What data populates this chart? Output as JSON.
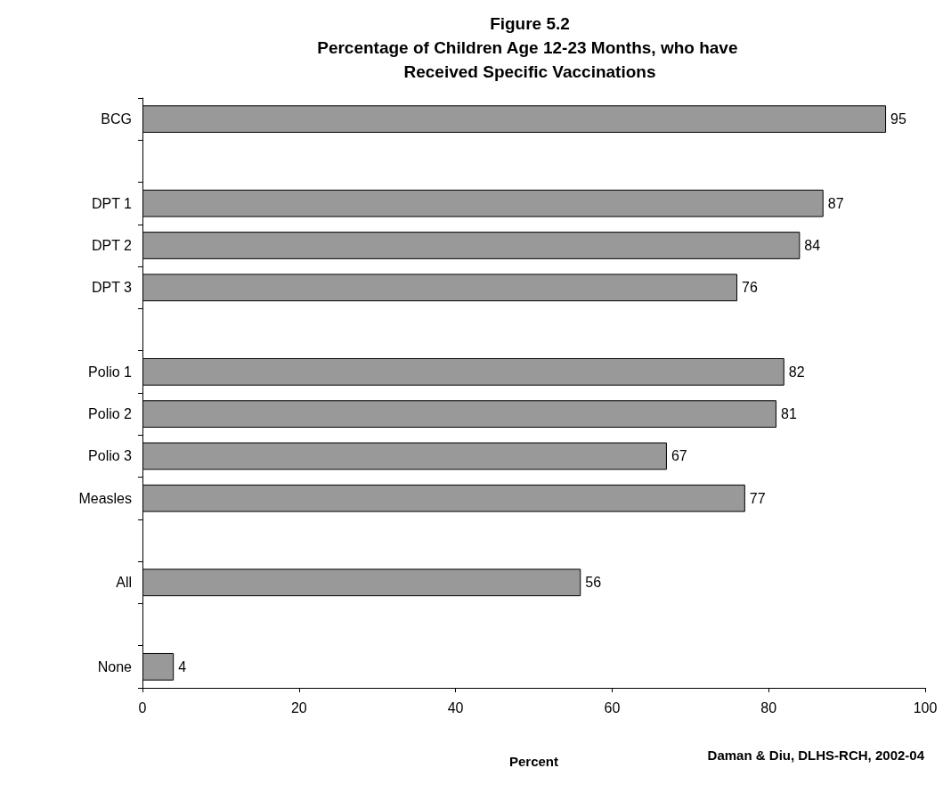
{
  "chart_data": {
    "type": "bar",
    "orientation": "horizontal",
    "title": "Figure 5.2",
    "subtitle": "Percentage of Children Age 12-23 Months, who have Received Specific Vaccinations",
    "categories": [
      "BCG",
      null,
      "DPT 1",
      "DPT 2",
      "DPT 3",
      null,
      "Polio 1",
      "Polio 2",
      "Polio 3",
      "Measles",
      null,
      "All",
      null,
      "None"
    ],
    "values": [
      95,
      null,
      87,
      84,
      76,
      null,
      82,
      81,
      67,
      77,
      null,
      56,
      null,
      4
    ],
    "color": "#999999",
    "data_labels": true,
    "xlabel": "Percent",
    "xlim": [
      0,
      100
    ],
    "xticks": [
      0,
      20,
      40,
      60,
      80,
      100
    ],
    "grid": false,
    "annotations": [
      "Daman & Diu, DLHS-RCH, 2002-04"
    ]
  }
}
